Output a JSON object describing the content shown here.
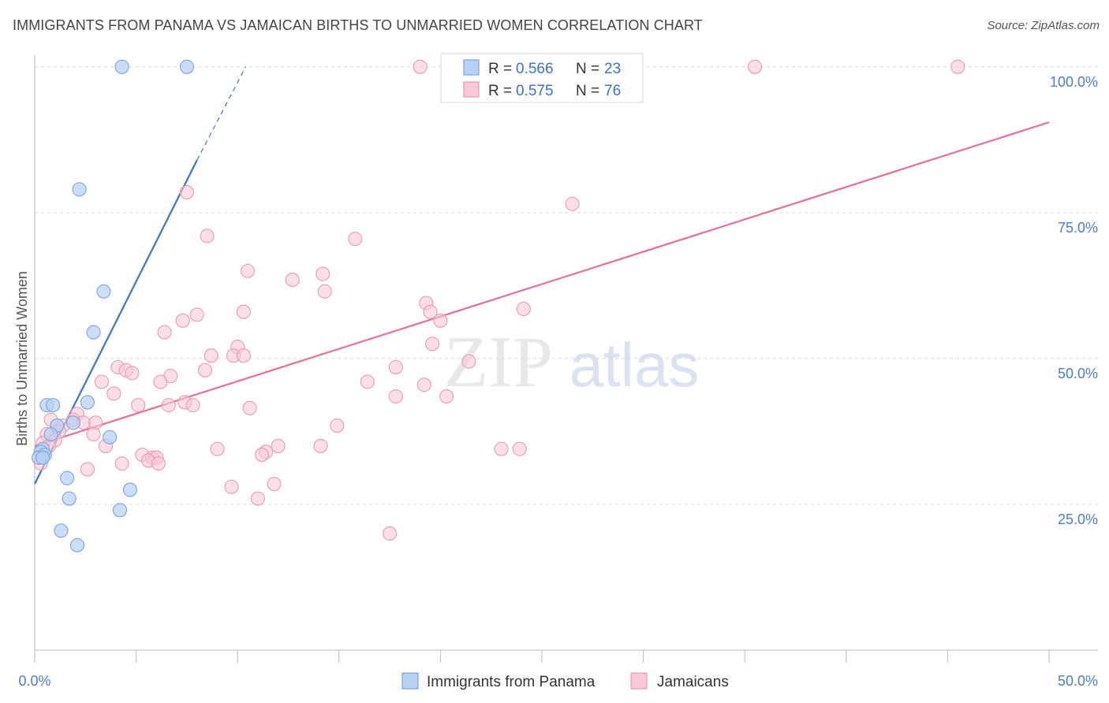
{
  "title": "IMMIGRANTS FROM PANAMA VS JAMAICAN BIRTHS TO UNMARRIED WOMEN CORRELATION CHART",
  "source": "Source: ZipAtlas.com",
  "watermark": {
    "zip": "ZIP",
    "atlas": "atlas"
  },
  "legend": {
    "r_label": "R =",
    "n_label": "N =",
    "rows": [
      {
        "r": "0.566",
        "n": "23"
      },
      {
        "r": "0.575",
        "n": "76"
      }
    ]
  },
  "colors": {
    "panama_fill": "#b7d0f3",
    "panama_stroke": "#7aa3dd",
    "panama_line": "#3b74cc",
    "jamaica_fill": "#f8c9d7",
    "jamaica_stroke": "#e89ab3",
    "jamaica_line": "#e46f9a",
    "grid": "#d9d9d9",
    "tick_text": "#4a7ec9"
  },
  "chart_data": {
    "type": "scatter",
    "title": "IMMIGRANTS FROM PANAMA VS JAMAICAN BIRTHS TO UNMARRIED WOMEN CORRELATION CHART",
    "xlabel": "",
    "ylabel": "Births to Unmarried Women",
    "xlim": [
      0,
      50
    ],
    "ylim": [
      0,
      102
    ],
    "x_tick_labels": [
      "0.0%",
      "50.0%"
    ],
    "y_ticks": [
      25,
      50,
      75,
      100
    ],
    "y_tick_labels": [
      "25.0%",
      "50.0%",
      "75.0%",
      "100.0%"
    ],
    "grid": true,
    "legend_position": "bottom",
    "series": [
      {
        "name": "Immigrants from Panama",
        "points": [
          [
            4.3,
            100
          ],
          [
            7.5,
            100
          ],
          [
            2.2,
            79
          ],
          [
            3.4,
            61.5
          ],
          [
            2.9,
            54.5
          ],
          [
            0.6,
            42
          ],
          [
            0.9,
            42
          ],
          [
            2.6,
            42.5
          ],
          [
            1.1,
            38.5
          ],
          [
            1.9,
            39
          ],
          [
            0.8,
            37
          ],
          [
            3.7,
            36.5
          ],
          [
            0.4,
            34.5
          ],
          [
            0.3,
            34
          ],
          [
            0.5,
            33.5
          ],
          [
            0.2,
            33
          ],
          [
            0.4,
            33
          ],
          [
            1.6,
            29.5
          ],
          [
            4.7,
            27.5
          ],
          [
            1.7,
            26
          ],
          [
            4.2,
            24
          ],
          [
            1.3,
            20.5
          ],
          [
            2.1,
            18
          ]
        ],
        "trend": {
          "x0": 0,
          "y0": 28.5,
          "x1": 8.0,
          "y1": 84,
          "dash_x1": 10.4,
          "dash_y1": 100
        }
      },
      {
        "name": "Jamaicans",
        "points": [
          [
            19,
            100
          ],
          [
            35.5,
            100
          ],
          [
            45.5,
            100
          ],
          [
            7.5,
            78.5
          ],
          [
            26.5,
            76.5
          ],
          [
            8.5,
            71
          ],
          [
            15.8,
            70.5
          ],
          [
            10.5,
            65
          ],
          [
            12.7,
            63.5
          ],
          [
            14.2,
            64.5
          ],
          [
            14.3,
            61.5
          ],
          [
            19.3,
            59.5
          ],
          [
            24.1,
            58.5
          ],
          [
            10.3,
            58
          ],
          [
            19.5,
            58
          ],
          [
            8.0,
            57.5
          ],
          [
            7.3,
            56.5
          ],
          [
            20.0,
            56.5
          ],
          [
            6.4,
            54.5
          ],
          [
            19.6,
            52.5
          ],
          [
            10.0,
            52
          ],
          [
            8.7,
            50.5
          ],
          [
            9.8,
            50.5
          ],
          [
            10.3,
            50.5
          ],
          [
            21.4,
            49.5
          ],
          [
            17.8,
            48.5
          ],
          [
            4.1,
            48.5
          ],
          [
            4.5,
            48
          ],
          [
            4.8,
            47.5
          ],
          [
            8.4,
            48
          ],
          [
            6.7,
            47
          ],
          [
            3.3,
            46
          ],
          [
            6.2,
            46
          ],
          [
            16.4,
            46
          ],
          [
            19.2,
            45.5
          ],
          [
            3.9,
            44
          ],
          [
            17.8,
            43.5
          ],
          [
            20.3,
            43.5
          ],
          [
            7.4,
            42.5
          ],
          [
            5.1,
            42
          ],
          [
            6.6,
            42
          ],
          [
            7.8,
            42
          ],
          [
            10.6,
            41.5
          ],
          [
            2.1,
            40.5
          ],
          [
            0.8,
            39.5
          ],
          [
            1.9,
            39.5
          ],
          [
            2.4,
            39
          ],
          [
            3.0,
            39
          ],
          [
            1.4,
            38.5
          ],
          [
            14.9,
            38.5
          ],
          [
            1.2,
            37.5
          ],
          [
            2.9,
            37
          ],
          [
            0.6,
            37
          ],
          [
            1.0,
            36
          ],
          [
            0.4,
            35.5
          ],
          [
            0.7,
            35
          ],
          [
            3.5,
            35
          ],
          [
            12.0,
            35
          ],
          [
            9.0,
            34.5
          ],
          [
            23.0,
            34.5
          ],
          [
            23.9,
            34.5
          ],
          [
            14.1,
            35
          ],
          [
            11.4,
            34
          ],
          [
            11.2,
            33.5
          ],
          [
            5.3,
            33.5
          ],
          [
            5.8,
            33
          ],
          [
            6.0,
            33
          ],
          [
            5.6,
            32.5
          ],
          [
            4.3,
            32
          ],
          [
            6.1,
            32
          ],
          [
            2.6,
            31
          ],
          [
            0.3,
            32
          ],
          [
            9.7,
            28
          ],
          [
            11.8,
            28.5
          ],
          [
            11.0,
            26
          ],
          [
            17.5,
            20
          ]
        ],
        "trend": {
          "x0": 0,
          "y0": 35,
          "x1": 50,
          "y1": 90.5
        }
      }
    ]
  }
}
